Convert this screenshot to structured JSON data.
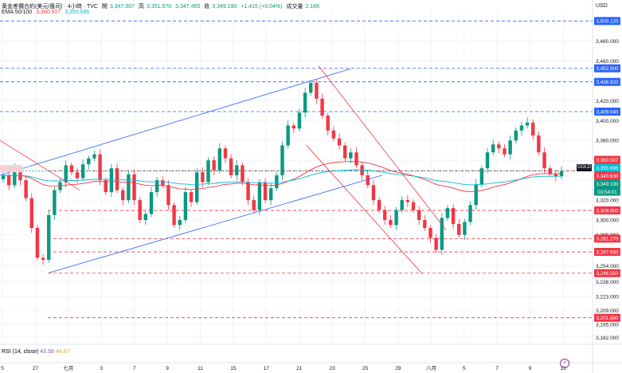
{
  "header": {
    "symbol_title": "黃金差價合約(美元/盎司) · 4小時 · TVC",
    "open_label": "開",
    "open": "3,347.507",
    "high_label": "高",
    "high": "3,351.570",
    "low": "3,347.465",
    "close_label": "收",
    "close": "3,349.190",
    "change": "+1.415 (+0.04%)",
    "volume_label": "成交量",
    "volume": "2.18K",
    "ema_label": "EMA 50/100",
    "ema50": "3,360.507",
    "ema100": "3,355.696"
  },
  "rsi": {
    "label": "RSI (14, close)",
    "v1": "43.58",
    "v2": "44.87"
  },
  "price_scale": {
    "currency": "USD",
    "ticks": [
      "3,480.000",
      "3,460.000",
      "3,420.000",
      "3,400.000",
      "3,380.000",
      "3,360.000",
      "3,340.000",
      "3,320.000",
      "3,300.000",
      "3,285.000",
      "3,270.000",
      "3,254.000",
      "3,238.000",
      "3,223.000",
      "3,209.000",
      "3,195.000",
      "3,182.000"
    ]
  },
  "price_labels": [
    {
      "text": "3,500.120",
      "color": "#2962ff"
    },
    {
      "text": "3,452.500",
      "color": "#2962ff"
    },
    {
      "text": "3,438.920",
      "color": "#2962ff"
    },
    {
      "text": "3,409.040",
      "color": "#2962ff"
    },
    {
      "text": "3,360.507",
      "color": "#f23645"
    },
    {
      "text": "3,355.696",
      "color": "#00bcd4"
    },
    {
      "text": "3,349.630",
      "color": "#f23645"
    },
    {
      "text": "3,349.190",
      "color": "#089981"
    },
    {
      "text": "03:54:01",
      "color": "#089981"
    },
    {
      "text": "3,309.600",
      "color": "#f23645"
    },
    {
      "text": "3,281.270",
      "color": "#f23645"
    },
    {
      "text": "3,267.930",
      "color": "#f23645"
    },
    {
      "text": "3,246.550",
      "color": "#f23645"
    },
    {
      "text": "3,201.680",
      "color": "#f23645"
    }
  ],
  "gold_tag": "GOLD",
  "time_axis": [
    "5",
    "27",
    "七月",
    "3",
    "7",
    "9",
    "11",
    "15",
    "17",
    "21",
    "23",
    "25",
    "29",
    "八月",
    "5",
    "7",
    "9",
    "13"
  ],
  "colors": {
    "up": "#089981",
    "down": "#f23645",
    "channel": "#2962ff",
    "ema100": "#00bcd4",
    "ema50": "#f23645"
  },
  "chart_data": {
    "type": "candlestick",
    "title": "黃金差價合約(美元/盎司) · 4小時 · TVC",
    "ylabel": "USD",
    "x_tick_labels": [
      "5",
      "27",
      "七月",
      "3",
      "7",
      "9",
      "11",
      "15",
      "17",
      "21",
      "23",
      "25",
      "29",
      "八月",
      "5",
      "7",
      "9",
      "13"
    ],
    "ylim": [
      3175,
      3510
    ],
    "close_series": [
      3345,
      3335,
      3352,
      3340,
      3322,
      3292,
      3262,
      3260,
      3305,
      3330,
      3338,
      3355,
      3348,
      3342,
      3356,
      3362,
      3366,
      3340,
      3328,
      3352,
      3330,
      3320,
      3346,
      3320,
      3300,
      3306,
      3328,
      3340,
      3335,
      3315,
      3295,
      3300,
      3328,
      3318,
      3348,
      3338,
      3360,
      3350,
      3372,
      3362,
      3345,
      3355,
      3338,
      3320,
      3310,
      3338,
      3320,
      3332,
      3345,
      3375,
      3395,
      3392,
      3408,
      3428,
      3438,
      3422,
      3405,
      3390,
      3382,
      3375,
      3362,
      3368,
      3355,
      3345,
      3335,
      3320,
      3310,
      3300,
      3295,
      3310,
      3320,
      3318,
      3310,
      3300,
      3292,
      3282,
      3270,
      3302,
      3312,
      3296,
      3285,
      3298,
      3315,
      3336,
      3352,
      3368,
      3376,
      3372,
      3366,
      3380,
      3390,
      3395,
      3398,
      3385,
      3368,
      3352,
      3346,
      3344,
      3349
    ],
    "series": [
      {
        "name": "EMA 50",
        "value": 3360.507
      },
      {
        "name": "EMA 100",
        "value": 3355.696
      }
    ],
    "horizontal_levels": [
      3500.12,
      3452.5,
      3438.92,
      3409.04,
      3349.63,
      3309.6,
      3281.27,
      3267.93,
      3246.55,
      3201.68
    ],
    "last_price": 3349.19,
    "grid": true
  }
}
